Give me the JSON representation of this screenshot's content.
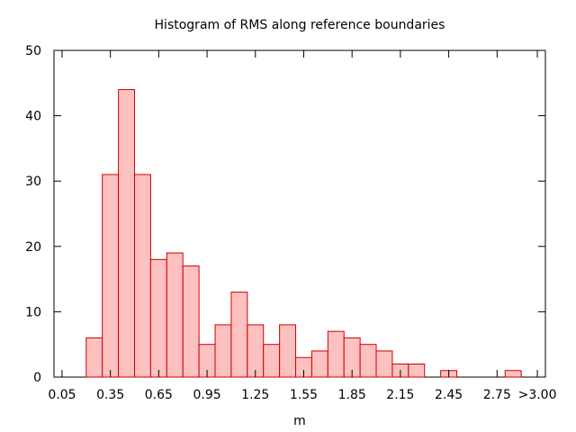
{
  "chart_data": {
    "type": "bar",
    "title": "Histogram of RMS along reference boundaries",
    "xlabel": "m",
    "ylabel": "",
    "xlim": [
      0.0,
      3.05
    ],
    "ylim": [
      0,
      50
    ],
    "bin_width": 0.1,
    "x_ticks": [
      {
        "value": 0.05,
        "label": "0.05"
      },
      {
        "value": 0.35,
        "label": "0.35"
      },
      {
        "value": 0.65,
        "label": "0.65"
      },
      {
        "value": 0.95,
        "label": "0.95"
      },
      {
        "value": 1.25,
        "label": "1.25"
      },
      {
        "value": 1.55,
        "label": "1.55"
      },
      {
        "value": 1.85,
        "label": "1.85"
      },
      {
        "value": 2.15,
        "label": "2.15"
      },
      {
        "value": 2.45,
        "label": "2.45"
      },
      {
        "value": 2.75,
        "label": "2.75"
      },
      {
        "value": 3.0,
        "label": ">3.00"
      }
    ],
    "y_ticks": [
      0,
      10,
      20,
      30,
      40,
      50
    ],
    "categories": [
      "0.25",
      "0.35",
      "0.45",
      "0.55",
      "0.65",
      "0.75",
      "0.85",
      "0.95",
      "1.05",
      "1.15",
      "1.25",
      "1.35",
      "1.45",
      "1.55",
      "1.65",
      "1.75",
      "1.85",
      "1.95",
      "2.05",
      "2.15",
      "2.25",
      "2.35",
      "2.45",
      "2.55",
      "2.65",
      "2.75",
      "2.85"
    ],
    "x": [
      0.25,
      0.35,
      0.45,
      0.55,
      0.65,
      0.75,
      0.85,
      0.95,
      1.05,
      1.15,
      1.25,
      1.35,
      1.45,
      1.55,
      1.65,
      1.75,
      1.85,
      1.95,
      2.05,
      2.15,
      2.25,
      2.35,
      2.45,
      2.55,
      2.65,
      2.75,
      2.85
    ],
    "values": [
      6,
      31,
      44,
      31,
      18,
      19,
      17,
      5,
      8,
      13,
      8,
      5,
      8,
      3,
      4,
      7,
      6,
      5,
      4,
      2,
      2,
      0,
      1,
      0,
      0,
      0,
      1
    ],
    "colors": {
      "fill": "#ffc0c0",
      "stroke": "#cc0000",
      "axis": "#000000"
    },
    "grid": false,
    "legend": "none"
  }
}
